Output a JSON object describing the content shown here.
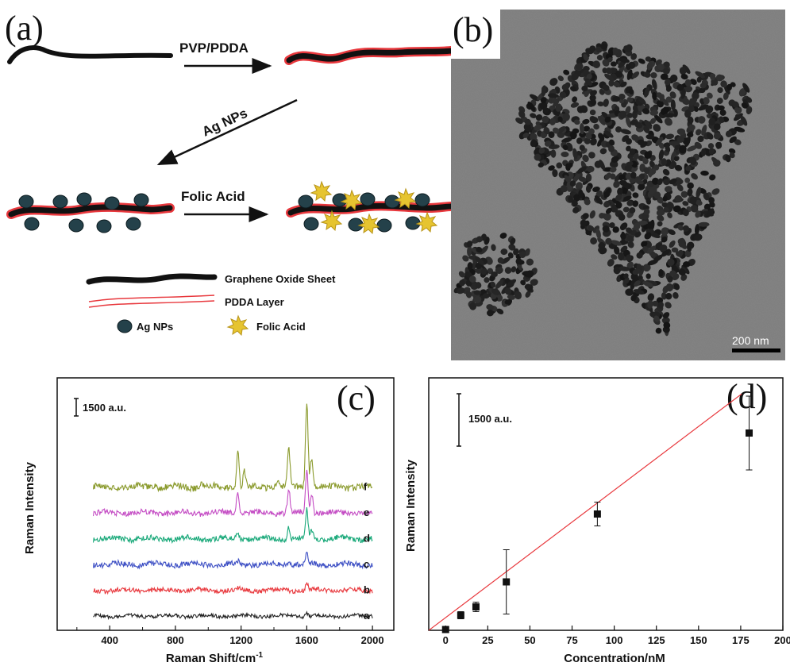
{
  "panels": {
    "a": {
      "letter": "(a)"
    },
    "b": {
      "letter": "(b)"
    },
    "c": {
      "letter": "(c)"
    },
    "d": {
      "letter": "(d)"
    }
  },
  "schematic": {
    "step1_label": "PVP/PDDA",
    "step2_label": "Ag NPs",
    "step3_label": "Folic Acid",
    "legend": {
      "go_sheet": "Graphene Oxide Sheet",
      "pdda_layer": "PDDA Layer",
      "ag_nps": "Ag NPs",
      "folic_acid": "Folic Acid"
    },
    "colors": {
      "sheet": "#111111",
      "pdda": "#e8383d",
      "ag": "#24414a",
      "folic": "#e6c430"
    }
  },
  "tem": {
    "scale_bar": "200 nm"
  },
  "chart_data": [
    {
      "type": "line",
      "panel": "c",
      "xlabel": "Raman Shift/cm",
      "xlabel_sup": "-1",
      "ylabel": "Raman Intensity",
      "xlim": [
        80,
        2130
      ],
      "xticks": [
        400,
        800,
        1200,
        1600,
        2000
      ],
      "scale_label": "1500 a.u.",
      "series": [
        {
          "name": "a",
          "color": "#222222",
          "baseline": 0,
          "amp": 0.08,
          "peaks": [
            [
              1600,
              0.15
            ]
          ]
        },
        {
          "name": "b",
          "color": "#e8383d",
          "baseline": 1,
          "amp": 0.1,
          "peaks": [
            [
              1180,
              0.08
            ],
            [
              1600,
              0.3
            ]
          ]
        },
        {
          "name": "c",
          "color": "#3d4fc4",
          "baseline": 2,
          "amp": 0.12,
          "peaks": [
            [
              1180,
              0.15
            ],
            [
              1490,
              0.2
            ],
            [
              1600,
              0.55
            ]
          ]
        },
        {
          "name": "d",
          "color": "#1aa97a",
          "baseline": 3,
          "amp": 0.12,
          "peaks": [
            [
              1180,
              0.3
            ],
            [
              1490,
              0.55
            ],
            [
              1600,
              1.25
            ],
            [
              1630,
              0.4
            ]
          ]
        },
        {
          "name": "e",
          "color": "#c44cc4",
          "baseline": 4,
          "amp": 0.12,
          "peaks": [
            [
              1180,
              1.0
            ],
            [
              1490,
              1.1
            ],
            [
              1600,
              1.9
            ],
            [
              1630,
              0.9
            ]
          ]
        },
        {
          "name": "f",
          "color": "#8a9a2c",
          "baseline": 5,
          "amp": 0.14,
          "peaks": [
            [
              680,
              0.15
            ],
            [
              960,
              0.2
            ],
            [
              1180,
              1.65
            ],
            [
              1220,
              0.7
            ],
            [
              1420,
              0.35
            ],
            [
              1490,
              1.65
            ],
            [
              1600,
              3.85
            ],
            [
              1630,
              1.4
            ]
          ]
        }
      ]
    },
    {
      "type": "scatter",
      "panel": "d",
      "xlabel": "Concentration/nM",
      "ylabel": "Raman Intensity",
      "xlim": [
        -10,
        200
      ],
      "xticks": [
        0,
        25,
        50,
        75,
        100,
        125,
        150,
        175,
        200
      ],
      "scale_label": "1500 a.u.",
      "points": [
        {
          "x": 0,
          "y": 0.0,
          "err": 0.0
        },
        {
          "x": 9,
          "y": 0.6,
          "err": 0.15
        },
        {
          "x": 18,
          "y": 0.95,
          "err": 0.2
        },
        {
          "x": 36,
          "y": 2.0,
          "err": 1.35
        },
        {
          "x": 90,
          "y": 4.85,
          "err": 0.5
        },
        {
          "x": 180,
          "y": 8.25,
          "err": 1.55
        }
      ],
      "fit": {
        "slope": 0.0535,
        "intercept": -0.1,
        "color": "#e8383d"
      }
    }
  ]
}
